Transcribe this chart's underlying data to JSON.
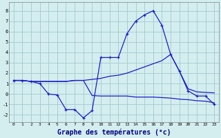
{
  "xlabel": "Graphe des températures (°c)",
  "bg_color": "#d4eef0",
  "grid_color": "#a8cdd0",
  "line_color": "#1a1acc",
  "x_hours": [
    0,
    1,
    2,
    3,
    4,
    5,
    6,
    7,
    8,
    9,
    10,
    11,
    12,
    13,
    14,
    15,
    16,
    17,
    18,
    19,
    20,
    21,
    22,
    23
  ],
  "series_max": [
    1.3,
    1.3,
    1.2,
    1.0,
    0.0,
    -0.1,
    -1.5,
    -1.5,
    -2.3,
    -1.6,
    3.5,
    3.5,
    3.5,
    5.8,
    7.0,
    7.6,
    8.0,
    6.6,
    3.8,
    2.2,
    0.3,
    -0.2,
    -0.2,
    -1.0
  ],
  "series_mean": [
    1.3,
    1.3,
    1.2,
    1.2,
    1.2,
    1.2,
    1.2,
    1.3,
    1.3,
    1.4,
    1.5,
    1.7,
    1.8,
    2.0,
    2.3,
    2.6,
    2.9,
    3.2,
    3.8,
    2.2,
    0.5,
    0.2,
    0.15,
    0.1
  ],
  "series_min": [
    1.3,
    1.3,
    1.2,
    1.2,
    1.2,
    1.2,
    1.2,
    1.3,
    1.3,
    -0.15,
    -0.2,
    -0.2,
    -0.2,
    -0.2,
    -0.3,
    -0.3,
    -0.3,
    -0.35,
    -0.4,
    -0.5,
    -0.55,
    -0.65,
    -0.7,
    -0.85
  ],
  "ylim": [
    -2.7,
    8.8
  ],
  "yticks": [
    -2,
    -1,
    0,
    1,
    2,
    3,
    4,
    5,
    6,
    7,
    8
  ],
  "xlim": [
    -0.5,
    23.5
  ],
  "xticks": [
    0,
    1,
    2,
    3,
    4,
    5,
    6,
    7,
    8,
    9,
    10,
    11,
    12,
    13,
    14,
    15,
    16,
    17,
    18,
    19,
    20,
    21,
    22,
    23
  ]
}
